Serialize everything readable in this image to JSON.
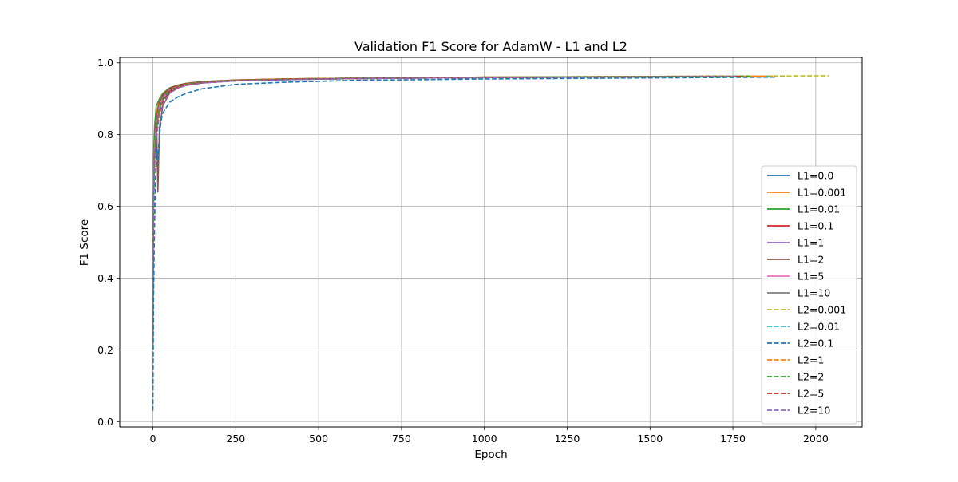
{
  "chart_data": {
    "type": "line",
    "title": "Validation F1 Score for AdamW - L1 and L2",
    "xlabel": "Epoch",
    "ylabel": "F1 Score",
    "xlim": [
      -100,
      2140
    ],
    "ylim": [
      -0.015,
      1.015
    ],
    "xticks": [
      0,
      250,
      500,
      750,
      1000,
      1250,
      1500,
      1750,
      2000
    ],
    "yticks": [
      0.0,
      0.2,
      0.4,
      0.6,
      0.8,
      1.0
    ],
    "grid": true,
    "legend_position": "lower right",
    "series": [
      {
        "name": "L1=0.0",
        "color": "#1f77b4",
        "dash": "solid",
        "x": [
          0,
          2,
          5,
          10,
          15,
          20,
          30,
          50,
          75,
          100,
          150,
          250,
          400,
          600,
          1000,
          1500,
          1860
        ],
        "y": [
          0.2,
          0.62,
          0.75,
          0.8,
          0.84,
          0.87,
          0.9,
          0.925,
          0.935,
          0.94,
          0.945,
          0.95,
          0.953,
          0.956,
          0.959,
          0.961,
          0.962
        ]
      },
      {
        "name": "L1=0.001",
        "color": "#ff7f0e",
        "dash": "solid",
        "x": [
          0,
          2,
          5,
          10,
          15,
          20,
          30,
          50,
          75,
          100,
          150,
          250,
          400,
          600,
          1000,
          1500,
          1870
        ],
        "y": [
          0.22,
          0.7,
          0.8,
          0.85,
          0.88,
          0.9,
          0.915,
          0.93,
          0.938,
          0.942,
          0.947,
          0.952,
          0.955,
          0.957,
          0.96,
          0.962,
          0.963
        ]
      },
      {
        "name": "L1=0.01",
        "color": "#2ca02c",
        "dash": "solid",
        "x": [
          0,
          2,
          5,
          10,
          15,
          20,
          30,
          50,
          75,
          100,
          150,
          250,
          400,
          600,
          1000,
          1500,
          1760
        ],
        "y": [
          0.25,
          0.74,
          0.82,
          0.88,
          0.89,
          0.9,
          0.915,
          0.93,
          0.938,
          0.943,
          0.948,
          0.952,
          0.955,
          0.957,
          0.96,
          0.961,
          0.962
        ]
      },
      {
        "name": "L1=0.1",
        "color": "#d62728",
        "dash": "solid",
        "x": [
          0,
          2,
          5,
          10,
          15,
          20,
          30,
          50,
          75,
          100,
          150,
          250,
          400,
          600,
          1000,
          1500,
          1750
        ],
        "y": [
          0.23,
          0.7,
          0.78,
          0.84,
          0.87,
          0.89,
          0.91,
          0.928,
          0.937,
          0.942,
          0.947,
          0.952,
          0.955,
          0.957,
          0.96,
          0.961,
          0.962
        ]
      },
      {
        "name": "L1=1",
        "color": "#9467bd",
        "dash": "solid",
        "x": [
          0,
          2,
          5,
          10,
          15,
          20,
          30,
          50,
          75,
          100,
          150,
          250,
          400,
          600,
          1000,
          1500,
          1750
        ],
        "y": [
          0.24,
          0.68,
          0.77,
          0.83,
          0.86,
          0.885,
          0.905,
          0.925,
          0.935,
          0.94,
          0.946,
          0.951,
          0.954,
          0.957,
          0.959,
          0.961,
          0.962
        ]
      },
      {
        "name": "L1=2",
        "color": "#8c564b",
        "dash": "solid",
        "x": [
          0,
          2,
          5,
          8,
          12,
          15,
          20,
          30,
          50,
          75,
          100,
          150,
          250,
          400,
          600,
          1000,
          1500,
          1750
        ],
        "y": [
          0.22,
          0.66,
          0.74,
          0.76,
          0.8,
          0.64,
          0.82,
          0.88,
          0.915,
          0.93,
          0.937,
          0.944,
          0.95,
          0.954,
          0.956,
          0.959,
          0.961,
          0.962
        ]
      },
      {
        "name": "L1=5",
        "color": "#e377c2",
        "dash": "solid",
        "x": [
          0,
          2,
          5,
          10,
          15,
          20,
          30,
          50,
          75,
          100,
          150,
          250,
          400,
          600,
          1000,
          1500,
          1750
        ],
        "y": [
          0.21,
          0.66,
          0.76,
          0.82,
          0.85,
          0.88,
          0.9,
          0.922,
          0.934,
          0.94,
          0.946,
          0.951,
          0.954,
          0.956,
          0.959,
          0.961,
          0.962
        ]
      },
      {
        "name": "L1=10",
        "color": "#7f7f7f",
        "dash": "solid",
        "x": [
          0,
          2,
          5,
          10,
          15,
          20,
          30,
          50,
          75,
          100,
          150,
          250,
          400,
          600,
          1000,
          1500,
          1750
        ],
        "y": [
          0.2,
          0.64,
          0.74,
          0.8,
          0.84,
          0.87,
          0.895,
          0.92,
          0.932,
          0.938,
          0.944,
          0.95,
          0.953,
          0.956,
          0.959,
          0.961,
          0.962
        ]
      },
      {
        "name": "L2=0.001",
        "color": "#bcbd22",
        "dash": "dashed",
        "x": [
          0,
          2,
          5,
          10,
          15,
          20,
          30,
          50,
          75,
          100,
          150,
          250,
          400,
          600,
          1000,
          1500,
          2040
        ],
        "y": [
          0.5,
          0.6,
          0.72,
          0.8,
          0.84,
          0.87,
          0.9,
          0.923,
          0.934,
          0.94,
          0.946,
          0.951,
          0.955,
          0.957,
          0.96,
          0.962,
          0.964
        ]
      },
      {
        "name": "L2=0.01",
        "color": "#17becf",
        "dash": "dashed",
        "x": [
          0,
          2,
          5,
          10,
          15,
          20,
          30,
          50,
          75,
          100,
          150,
          250,
          400,
          600,
          1000,
          1500,
          1860
        ],
        "y": [
          0.5,
          0.62,
          0.73,
          0.8,
          0.84,
          0.87,
          0.9,
          0.922,
          0.933,
          0.939,
          0.945,
          0.95,
          0.954,
          0.956,
          0.959,
          0.961,
          0.962
        ]
      },
      {
        "name": "L2=0.1",
        "color": "#1f77b4",
        "dash": "dashed",
        "x": [
          0,
          2,
          5,
          8,
          12,
          15,
          20,
          25,
          30,
          50,
          75,
          100,
          150,
          250,
          400,
          600,
          1000,
          1500,
          1880
        ],
        "y": [
          0.03,
          0.35,
          0.55,
          0.68,
          0.76,
          0.73,
          0.8,
          0.84,
          0.86,
          0.89,
          0.905,
          0.915,
          0.928,
          0.94,
          0.946,
          0.951,
          0.955,
          0.958,
          0.96
        ]
      },
      {
        "name": "L2=1",
        "color": "#ff7f0e",
        "dash": "dashed",
        "x": [
          0,
          2,
          5,
          10,
          15,
          20,
          30,
          50,
          75,
          100,
          150,
          250,
          400,
          600,
          1000,
          1500,
          1850
        ],
        "y": [
          0.5,
          0.63,
          0.73,
          0.8,
          0.84,
          0.87,
          0.9,
          0.922,
          0.933,
          0.939,
          0.945,
          0.951,
          0.954,
          0.957,
          0.96,
          0.962,
          0.963
        ]
      },
      {
        "name": "L2=2",
        "color": "#2ca02c",
        "dash": "dashed",
        "x": [
          0,
          2,
          5,
          10,
          15,
          20,
          30,
          50,
          75,
          100,
          150,
          250,
          400,
          600,
          1000,
          1500,
          1800
        ],
        "y": [
          0.5,
          0.63,
          0.74,
          0.81,
          0.85,
          0.875,
          0.9,
          0.923,
          0.934,
          0.94,
          0.946,
          0.951,
          0.954,
          0.957,
          0.96,
          0.962,
          0.963
        ]
      },
      {
        "name": "L2=5",
        "color": "#d62728",
        "dash": "dashed",
        "x": [
          0,
          2,
          5,
          10,
          15,
          20,
          30,
          50,
          75,
          100,
          150,
          250,
          400,
          600,
          1000,
          1500,
          1780
        ],
        "y": [
          0.45,
          0.6,
          0.72,
          0.79,
          0.83,
          0.86,
          0.89,
          0.92,
          0.932,
          0.938,
          0.945,
          0.95,
          0.954,
          0.956,
          0.959,
          0.961,
          0.962
        ]
      },
      {
        "name": "L2=10",
        "color": "#9467bd",
        "dash": "dashed",
        "x": [
          0,
          2,
          5,
          10,
          15,
          20,
          30,
          50,
          75,
          100,
          150,
          250,
          400,
          600,
          1000,
          1500,
          1760
        ],
        "y": [
          0.45,
          0.6,
          0.71,
          0.78,
          0.82,
          0.855,
          0.885,
          0.915,
          0.93,
          0.937,
          0.944,
          0.95,
          0.953,
          0.956,
          0.959,
          0.961,
          0.962
        ]
      }
    ]
  }
}
